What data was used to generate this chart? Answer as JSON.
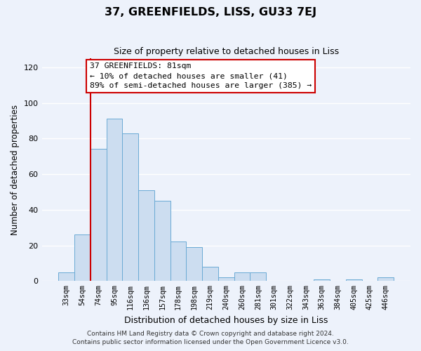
{
  "title": "37, GREENFIELDS, LISS, GU33 7EJ",
  "subtitle": "Size of property relative to detached houses in Liss",
  "xlabel": "Distribution of detached houses by size in Liss",
  "ylabel": "Number of detached properties",
  "bar_labels": [
    "33sqm",
    "54sqm",
    "74sqm",
    "95sqm",
    "116sqm",
    "136sqm",
    "157sqm",
    "178sqm",
    "198sqm",
    "219sqm",
    "240sqm",
    "260sqm",
    "281sqm",
    "301sqm",
    "322sqm",
    "343sqm",
    "363sqm",
    "384sqm",
    "405sqm",
    "425sqm",
    "446sqm"
  ],
  "bar_values": [
    5,
    26,
    74,
    91,
    83,
    51,
    45,
    22,
    19,
    8,
    2,
    5,
    5,
    0,
    0,
    0,
    1,
    0,
    1,
    0,
    2
  ],
  "bar_color": "#ccddf0",
  "bar_edge_color": "#6aaad4",
  "vline_color": "#cc0000",
  "vline_x_index": 2,
  "annotation_title": "37 GREENFIELDS: 81sqm",
  "annotation_line1": "← 10% of detached houses are smaller (41)",
  "annotation_line2": "89% of semi-detached houses are larger (385) →",
  "annotation_box_color": "#ffffff",
  "annotation_box_edge": "#cc0000",
  "ylim": [
    0,
    125
  ],
  "yticks": [
    0,
    20,
    40,
    60,
    80,
    100,
    120
  ],
  "footer1": "Contains HM Land Registry data © Crown copyright and database right 2024.",
  "footer2": "Contains public sector information licensed under the Open Government Licence v3.0.",
  "background_color": "#edf2fb",
  "grid_color": "#ffffff"
}
